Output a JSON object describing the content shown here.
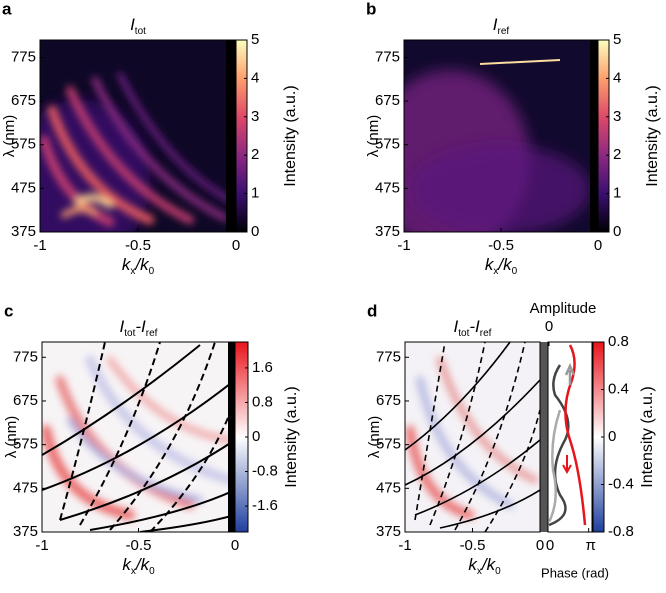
{
  "chart_data": [
    {
      "type": "heatmap",
      "panel_label": "a",
      "title": [
        {
          "text": "I",
          "sub": "tot"
        }
      ],
      "xlabel": [
        {
          "text": "k",
          "sub": "x"
        },
        {
          "text": "/k",
          "sub": "0"
        }
      ],
      "ylabel": "λ (nm)",
      "xlim": [
        -1,
        0
      ],
      "xticks": [
        -1,
        -0.5,
        0
      ],
      "ylim": [
        375,
        815
      ],
      "yticks": [
        375,
        475,
        575,
        675,
        775
      ],
      "colorbar_label": "Intensity (a.u.)",
      "clim": [
        0,
        5
      ],
      "cticks": [
        0,
        1,
        2,
        3,
        4,
        5
      ],
      "colormap": [
        "#000004",
        "#3b0f70",
        "#8c2981",
        "#de4968",
        "#fe9f6d",
        "#fcfdbf"
      ]
    },
    {
      "type": "heatmap",
      "panel_label": "b",
      "title": [
        {
          "text": "I",
          "sub": "ref"
        }
      ],
      "xlabel": [
        {
          "text": "k",
          "sub": "x"
        },
        {
          "text": "/k",
          "sub": "0"
        }
      ],
      "ylabel": "λ (nm)",
      "xlim": [
        -1,
        0
      ],
      "xticks": [
        -1,
        -0.5,
        0
      ],
      "ylim": [
        375,
        815
      ],
      "yticks": [
        375,
        475,
        575,
        675,
        775
      ],
      "colorbar_label": "Intensity (a.u.)",
      "clim": [
        0,
        5
      ],
      "cticks": [
        0,
        1,
        2,
        3,
        4,
        5
      ],
      "colormap": [
        "#000004",
        "#3b0f70",
        "#8c2981",
        "#de4968",
        "#fe9f6d",
        "#fcfdbf"
      ]
    },
    {
      "type": "heatmap",
      "panel_label": "c",
      "title": [
        {
          "text": "I",
          "sub": "tot"
        },
        {
          "text": "-I",
          "sub": "ref"
        }
      ],
      "xlabel": [
        {
          "text": "k",
          "sub": "x"
        },
        {
          "text": "/k",
          "sub": "0"
        }
      ],
      "ylabel": "λ (nm)",
      "xlim": [
        -1,
        0
      ],
      "xticks": [
        -1,
        -0.5,
        0
      ],
      "ylim": [
        375,
        810
      ],
      "yticks": [
        375,
        475,
        575,
        675,
        775
      ],
      "colorbar_label": "Intensity (a.u.)",
      "clim": [
        -2.2,
        2.2
      ],
      "cticks": [
        -1.6,
        -0.8,
        0,
        0.8,
        1.6
      ],
      "colormap": [
        "#1f3f9e",
        "#ffffff",
        "#e8141c"
      ]
    },
    {
      "type": "heatmap",
      "panel_label": "d",
      "title": [
        {
          "text": "I",
          "sub": "tot"
        },
        {
          "text": "-I",
          "sub": "ref"
        }
      ],
      "xlabel": [
        {
          "text": "k",
          "sub": "x"
        },
        {
          "text": "/k",
          "sub": "0"
        }
      ],
      "ylabel": "λ (nm)",
      "xlim": [
        -1,
        0
      ],
      "xticks": [
        -1,
        -0.5,
        0
      ],
      "ylim": [
        375,
        810
      ],
      "yticks": [
        375,
        475,
        575,
        675,
        775
      ],
      "colorbar_label": "Intensity (a.u.)",
      "clim": [
        -0.8,
        0.8
      ],
      "cticks": [
        -0.8,
        -0.4,
        0,
        0.4,
        0.8
      ],
      "colormap": [
        "#1f3f9e",
        "#ffffff",
        "#e8141c"
      ],
      "inset": {
        "top_label": "Amplitude",
        "top_ticks": [
          0
        ],
        "xlabel": "Phase (rad)",
        "xlim": [
          0,
          3.4
        ],
        "xticks": [
          0,
          {
            "value": 3.14159,
            "label": "π"
          }
        ]
      }
    }
  ]
}
